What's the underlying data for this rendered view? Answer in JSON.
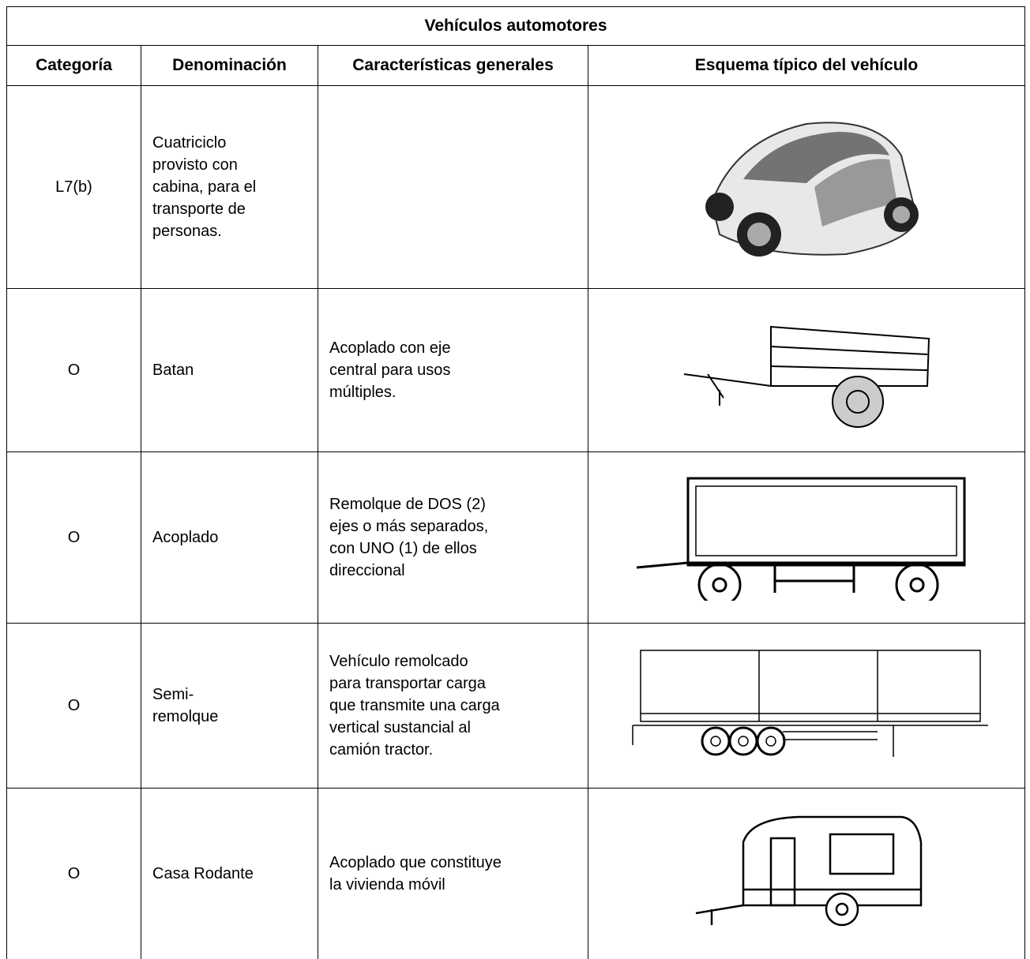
{
  "table": {
    "title": "Vehículos automotores",
    "header": [
      "Categoría",
      "Denominación",
      "Características generales",
      "Esquema típico del vehículo"
    ],
    "rows": [
      {
        "category": "L7(b)",
        "name": " Cuatriciclo\nprovisto con\ncabina, para el\ntransporte de\npersonas."
      },
      {
        "category": "O",
        "name": "Batan",
        "description": "Acoplado con eje\ncentral para usos\nmúltiples."
      },
      {
        "category": "O",
        "name": "Acoplado",
        "description": "Remolque de DOS (2)\nejes o más separados,\ncon UNO (1) de ellos\ndireccional"
      },
      {
        "category": "O",
        "name": "Semi-\nremolque",
        "description": "Vehículo remolcado\npara transportar carga\nque transmite una carga\nvertical sustancial al\ncamión tractor."
      },
      {
        "category": "O",
        "name": "Casa Rodante",
        "description": "Acoplado que constituye\nla vivienda  móvil"
      }
    ]
  }
}
